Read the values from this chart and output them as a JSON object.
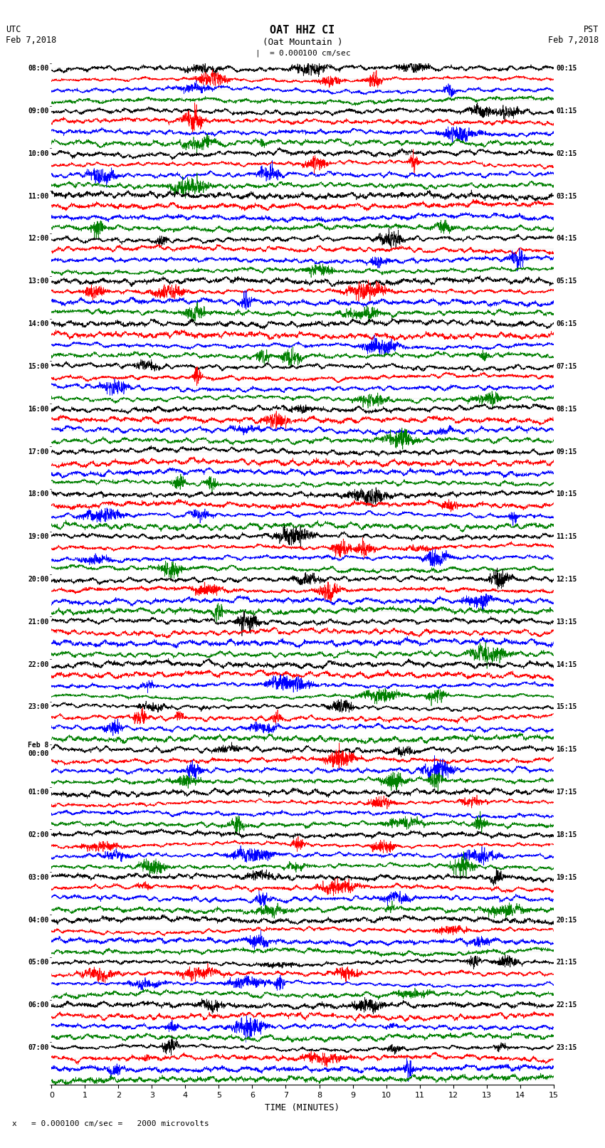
{
  "title_line1": "OAT HHZ CI",
  "title_line2": "(Oat Mountain )",
  "scale_text": "= 0.000100 cm/sec",
  "footer_text": "x   = 0.000100 cm/sec =   2000 microvolts",
  "left_label_top": "UTC",
  "left_label_date": "Feb 7,2018",
  "right_label_top": "PST",
  "right_label_date": "Feb 7,2018",
  "xlabel": "TIME (MINUTES)",
  "xlim": [
    0,
    15
  ],
  "xticks": [
    0,
    1,
    2,
    3,
    4,
    5,
    6,
    7,
    8,
    9,
    10,
    11,
    12,
    13,
    14,
    15
  ],
  "colors": [
    "black",
    "red",
    "blue",
    "green"
  ],
  "left_times": [
    "08:00",
    "09:00",
    "10:00",
    "11:00",
    "12:00",
    "13:00",
    "14:00",
    "15:00",
    "16:00",
    "17:00",
    "18:00",
    "19:00",
    "20:00",
    "21:00",
    "22:00",
    "23:00",
    "Feb 8\n00:00",
    "01:00",
    "02:00",
    "03:00",
    "04:00",
    "05:00",
    "06:00",
    "07:00"
  ],
  "right_times": [
    "00:15",
    "01:15",
    "02:15",
    "03:15",
    "04:15",
    "05:15",
    "06:15",
    "07:15",
    "08:15",
    "09:15",
    "10:15",
    "11:15",
    "12:15",
    "13:15",
    "14:15",
    "15:15",
    "16:15",
    "17:15",
    "18:15",
    "19:15",
    "20:15",
    "21:15",
    "22:15",
    "23:15"
  ],
  "n_rows": 24,
  "n_traces_per_row": 4,
  "bg_color": "white",
  "figsize": [
    8.5,
    16.13
  ],
  "dpi": 100
}
